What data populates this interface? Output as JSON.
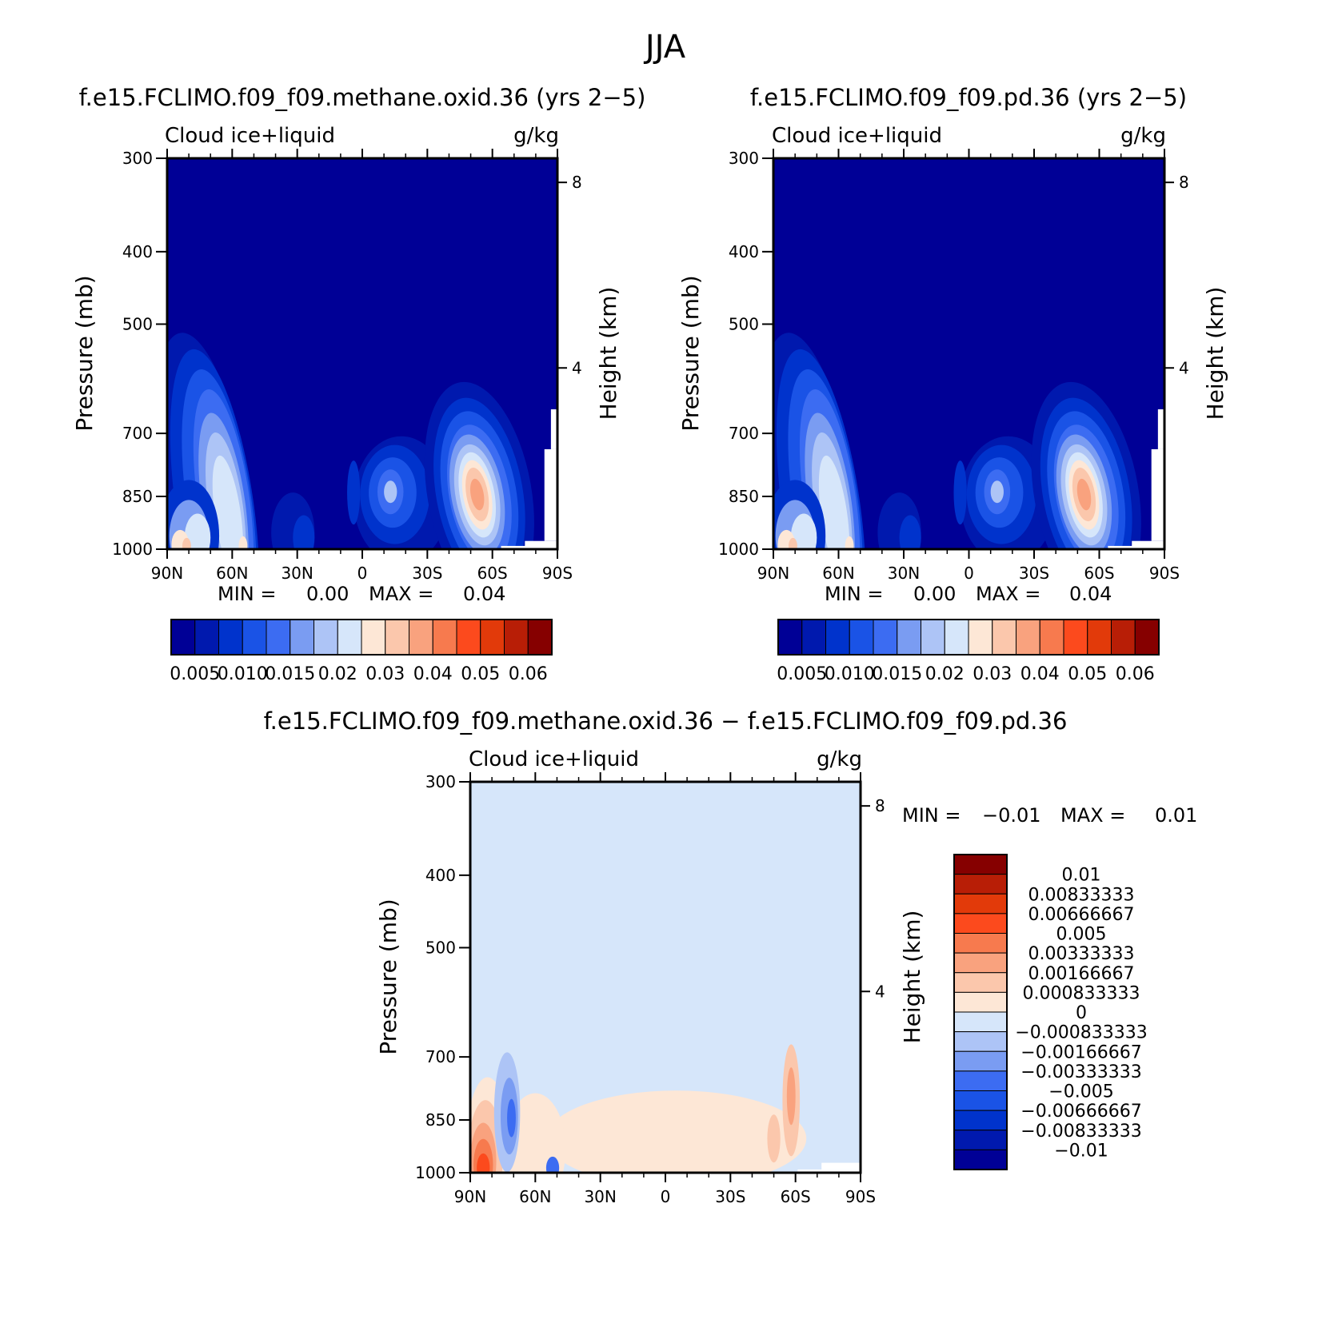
{
  "page_title": "JJA",
  "colors": {
    "abs_scale": [
      "#000096",
      "#0019AE",
      "#0033CC",
      "#1A53E6",
      "#3C6CF2",
      "#7A9CF2",
      "#ADC4F6",
      "#D6E6FA",
      "#FDE7D6",
      "#FBC7AC",
      "#F9A27E",
      "#F77A4E",
      "#FC4A1D",
      "#E23A0A",
      "#B81E06",
      "#860000"
    ],
    "diff_scale": [
      "#000096",
      "#0019AE",
      "#0033CC",
      "#1A53E6",
      "#3C6CF2",
      "#7A9CF2",
      "#ADC4F6",
      "#D6E6FA",
      "#FDE7D6",
      "#FBC7AC",
      "#F9A27E",
      "#F77A4E",
      "#FC4A1D",
      "#E23A0A",
      "#B81E06",
      "#860000"
    ],
    "missing": "#ffffff"
  },
  "chart_data": [
    {
      "type": "heatmap",
      "title": "f.e15.FCLIMO.f09_f09.methane.oxid.36 (yrs 2−5)",
      "variable": "Cloud  ice+liquid",
      "units": "g/kg",
      "ylabel": "Pressure (mb)",
      "ylabel_right": "Height (km)",
      "x_ticks": [
        "90N",
        "60N",
        "30N",
        "0",
        "30S",
        "60S",
        "90S"
      ],
      "y_ticks": [
        "300",
        "400",
        "500",
        "700",
        "850",
        "1000"
      ],
      "y_ticks_right": [
        "8",
        "4"
      ],
      "xlim": [
        90,
        -90
      ],
      "ylim": [
        1000,
        300
      ],
      "y_scale": "log",
      "min_label": "MIN =",
      "min_value": "0.00",
      "max_label": "MAX =",
      "max_value": "0.04",
      "min": 0.0,
      "max": 0.04,
      "colorbar_labels": [
        "0.005",
        "0.010",
        "0.015",
        "0.02",
        "0.03",
        "0.04",
        "0.05",
        "0.06"
      ],
      "levels": [
        0.0025,
        0.005,
        0.0075,
        0.01,
        0.0125,
        0.015,
        0.0175,
        0.02,
        0.025,
        0.03,
        0.035,
        0.04,
        0.045,
        0.05,
        0.055,
        0.06
      ],
      "features": [
        {
          "lat": 62,
          "p": 800,
          "value": 0.022,
          "desc": "NH high-latitude maximum"
        },
        {
          "lat": 82,
          "p": 970,
          "value": 0.03,
          "desc": "Arctic near-surface"
        },
        {
          "lat": -10,
          "p": 830,
          "value": 0.018,
          "desc": "tropical/subtropical low-level"
        },
        {
          "lat": -53,
          "p": 840,
          "value": 0.038,
          "desc": "Southern Ocean maximum"
        }
      ]
    },
    {
      "type": "heatmap",
      "title": "f.e15.FCLIMO.f09_f09.pd.36 (yrs 2−5)",
      "variable": "Cloud  ice+liquid",
      "units": "g/kg",
      "ylabel": "Pressure (mb)",
      "ylabel_right": "Height (km)",
      "x_ticks": [
        "90N",
        "60N",
        "30N",
        "0",
        "30S",
        "60S",
        "90S"
      ],
      "y_ticks": [
        "300",
        "400",
        "500",
        "700",
        "850",
        "1000"
      ],
      "y_ticks_right": [
        "8",
        "4"
      ],
      "xlim": [
        90,
        -90
      ],
      "ylim": [
        1000,
        300
      ],
      "y_scale": "log",
      "min_label": "MIN =",
      "min_value": "0.00",
      "max_label": "MAX =",
      "max_value": "0.04",
      "min": 0.0,
      "max": 0.04,
      "colorbar_labels": [
        "0.005",
        "0.010",
        "0.015",
        "0.02",
        "0.03",
        "0.04",
        "0.05",
        "0.06"
      ],
      "levels": [
        0.0025,
        0.005,
        0.0075,
        0.01,
        0.0125,
        0.015,
        0.0175,
        0.02,
        0.025,
        0.03,
        0.035,
        0.04,
        0.045,
        0.05,
        0.055,
        0.06
      ],
      "features": [
        {
          "lat": 62,
          "p": 800,
          "value": 0.022,
          "desc": "NH high-latitude maximum"
        },
        {
          "lat": 82,
          "p": 970,
          "value": 0.03,
          "desc": "Arctic near-surface"
        },
        {
          "lat": -10,
          "p": 830,
          "value": 0.018,
          "desc": "tropical/subtropical low-level"
        },
        {
          "lat": -53,
          "p": 840,
          "value": 0.038,
          "desc": "Southern Ocean maximum"
        }
      ]
    },
    {
      "type": "heatmap",
      "title": "f.e15.FCLIMO.f09_f09.methane.oxid.36 − f.e15.FCLIMO.f09_f09.pd.36",
      "variable": "Cloud  ice+liquid",
      "units": "g/kg",
      "ylabel": "Pressure (mb)",
      "ylabel_right": "Height (km)",
      "x_ticks": [
        "90N",
        "60N",
        "30N",
        "0",
        "30S",
        "60S",
        "90S"
      ],
      "y_ticks": [
        "300",
        "400",
        "500",
        "700",
        "850",
        "1000"
      ],
      "y_ticks_right": [
        "8",
        "4"
      ],
      "xlim": [
        90,
        -90
      ],
      "ylim": [
        1000,
        300
      ],
      "y_scale": "log",
      "min_label": "MIN =",
      "min_value": "−0.01",
      "max_label": "MAX =",
      "max_value": "0.01",
      "min": -0.01,
      "max": 0.01,
      "colorbar_labels": [
        "0.01",
        "0.00833333",
        "0.00666667",
        "0.005",
        "0.00333333",
        "0.00166667",
        "0.000833333",
        "0",
        "−0.000833333",
        "−0.00166667",
        "−0.00333333",
        "−0.005",
        "−0.00666667",
        "−0.00833333",
        "−0.01"
      ],
      "levels": [
        -0.01,
        -0.00833333,
        -0.00666667,
        -0.005,
        -0.00333333,
        -0.00166667,
        -0.000833333,
        0,
        0.000833333,
        0.00166667,
        0.00333333,
        0.005,
        0.00666667,
        0.00833333,
        0.01
      ],
      "features": [
        {
          "lat": 83,
          "p": 950,
          "value": 0.0075,
          "desc": "Arctic near-surface positive"
        },
        {
          "lat": 72,
          "p": 820,
          "value": -0.003,
          "desc": "high-latitude negative"
        },
        {
          "lat": -58,
          "p": 800,
          "value": 0.003,
          "desc": "Southern Ocean positive"
        }
      ]
    }
  ]
}
